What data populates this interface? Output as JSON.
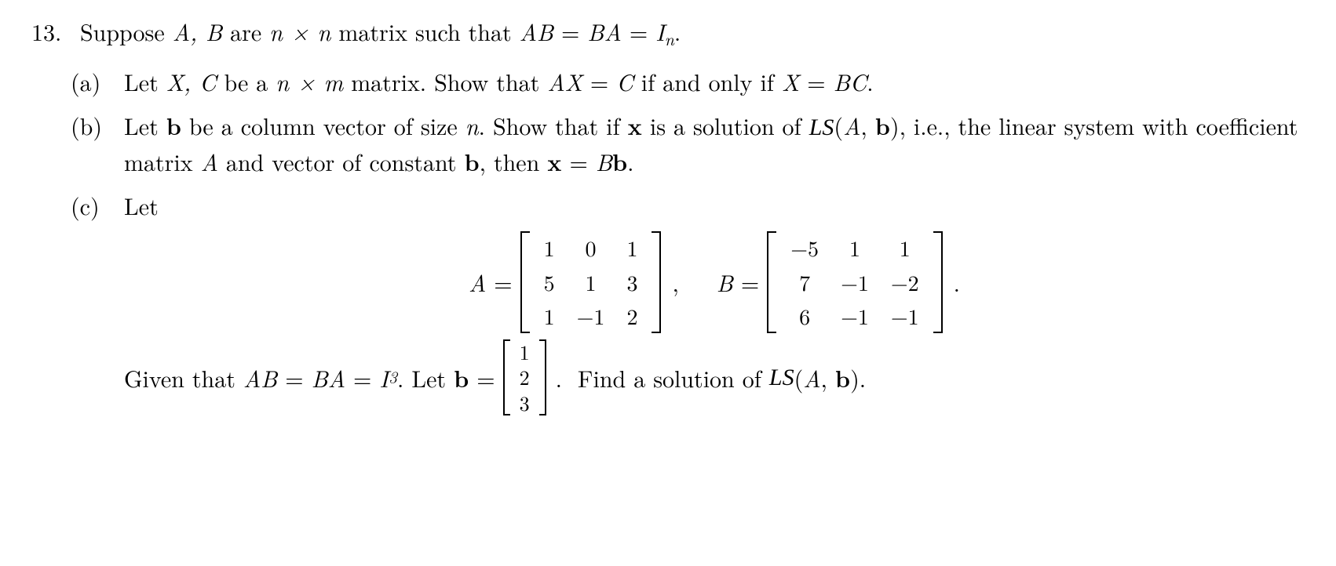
{
  "problem": {
    "number": "13.",
    "stem_parts": {
      "t1": "Suppose ",
      "AB": "A, B",
      "t2": " are ",
      "nxn": "n × n",
      "t3": " matrix such that ",
      "ABeq": "AB",
      "eq1": " = ",
      "BA": "BA",
      "eq2": " = ",
      "I": "I",
      "nsub": "n",
      "end": "."
    }
  },
  "parts": {
    "a": {
      "label": "(a)",
      "t1": "Let ",
      "XC": "X, C",
      "t2": " be a ",
      "nxm": "n × m",
      "t3": " matrix. Show that ",
      "AX": "AX",
      "eq1": " = ",
      "C": "C",
      "t4": " if and only if ",
      "X": "X",
      "eq2": " = ",
      "BC": "BC",
      "end": "."
    },
    "b": {
      "label": "(b)",
      "t1": "Let ",
      "bvec": "b",
      "t2": " be a column vector of size ",
      "n": "n",
      "t3": ". Show that if ",
      "xvec": "x",
      "t4": " is a solution of ",
      "LS": "LS",
      "lp": "(",
      "A": "A",
      "comma": ", ",
      "bvec2": "b",
      "rp": ")",
      "t5": ", i.e., the linear system with coefficient matrix ",
      "A2": "A",
      "t6": " and vector of constant ",
      "bvec3": "b",
      "t7": ", then ",
      "xvec2": "x",
      "eq": " = ",
      "B": "B",
      "bvec4": "b",
      "end": "."
    },
    "c": {
      "label": "(c)",
      "t1": "Let",
      "Aeq_lhs": "A",
      "Aeq_eq": " = ",
      "A_matrix": [
        [
          "1",
          "0",
          "1"
        ],
        [
          "5",
          "1",
          "3"
        ],
        [
          "1",
          "−1",
          "2"
        ]
      ],
      "Beq_lhs": "B",
      "Beq_eq": " = ",
      "B_matrix": [
        [
          "−5",
          "1",
          "1"
        ],
        [
          "7",
          "−1",
          "−2"
        ],
        [
          "6",
          "−1",
          "−1"
        ]
      ],
      "mid_comma": ",",
      "end_period": ".",
      "given1": "Given that ",
      "ABg": "AB",
      "geq1": " = ",
      "BAg": "BA",
      "geq2": " = ",
      "I": "I",
      "three": "3",
      "given2": ". Let ",
      "bvec": "b",
      "beq": " = ",
      "b_vector": [
        [
          "1"
        ],
        [
          "2"
        ],
        [
          "3"
        ]
      ],
      "given3": ".  Find a solution of ",
      "LS": "LS",
      "lp": "(",
      "A": "A",
      "comma": ", ",
      "bvec2": "b",
      "rp": ")",
      "end": "."
    }
  }
}
